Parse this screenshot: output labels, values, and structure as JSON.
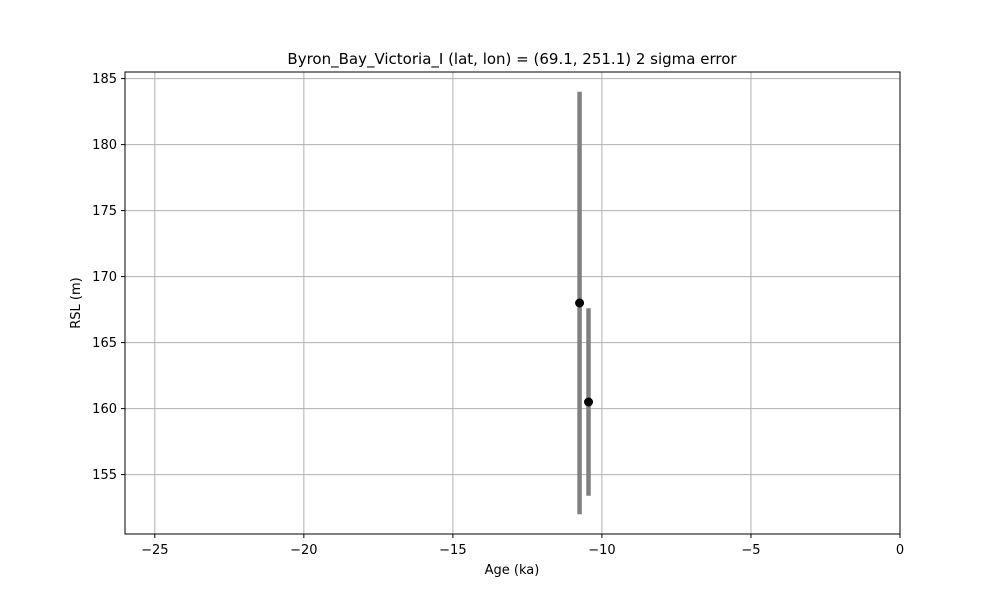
{
  "chart_data": {
    "type": "scatter",
    "title": "Byron_Bay_Victoria_I (lat, lon) = (69.1, 251.1)  2 sigma error",
    "xlabel": "Age (ka)",
    "ylabel": "RSL (m)",
    "xlim": [
      -26,
      0
    ],
    "ylim": [
      150.5,
      185.5
    ],
    "xticks": [
      -25,
      -20,
      -15,
      -10,
      -5,
      0
    ],
    "xtick_labels": [
      "−25",
      "−20",
      "−15",
      "−10",
      "−5",
      "0"
    ],
    "yticks": [
      155,
      160,
      165,
      170,
      175,
      180,
      185
    ],
    "ytick_labels": [
      "155",
      "160",
      "165",
      "170",
      "175",
      "180",
      "185"
    ],
    "grid": true,
    "marker_color": "#000000",
    "errorbar_color": "#808080",
    "points": [
      {
        "x": -10.75,
        "y": 168.0,
        "y_low": 152.0,
        "y_high": 184.0
      },
      {
        "x": -10.45,
        "y": 160.5,
        "y_low": 153.4,
        "y_high": 167.6
      }
    ]
  }
}
